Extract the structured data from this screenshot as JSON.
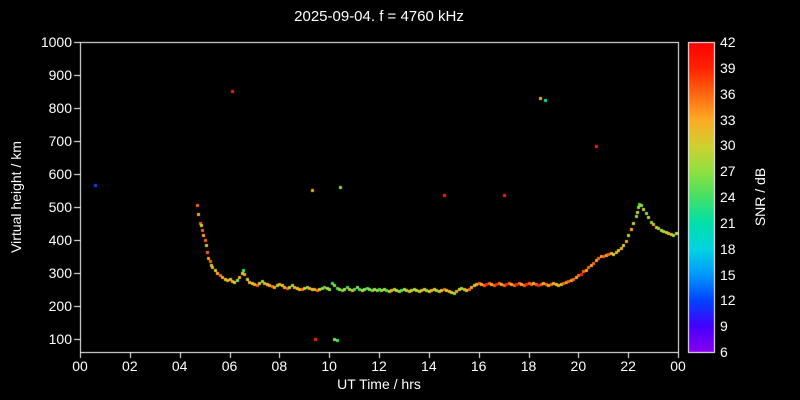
{
  "title": "2025-09-04. f = 4760 kHz",
  "axes": {
    "x_label": "UT Time / hrs",
    "y_label": "Virtual height / km",
    "x_tick_labels": [
      "00",
      "02",
      "04",
      "06",
      "08",
      "10",
      "12",
      "14",
      "16",
      "18",
      "20",
      "22",
      "00"
    ],
    "x_tick_values": [
      0,
      2,
      4,
      6,
      8,
      10,
      12,
      14,
      16,
      18,
      20,
      22,
      24
    ],
    "y_tick_labels": [
      "1000",
      "900",
      "800",
      "700",
      "600",
      "500",
      "400",
      "300",
      "200",
      "100"
    ],
    "y_tick_values": [
      1000,
      900,
      800,
      700,
      600,
      500,
      400,
      300,
      200,
      100
    ]
  },
  "colorbar": {
    "label": "SNR / dB",
    "tick_labels": [
      "42",
      "39",
      "36",
      "33",
      "30",
      "27",
      "24",
      "21",
      "18",
      "15",
      "12",
      "9",
      "6"
    ],
    "tick_values": [
      42,
      39,
      36,
      33,
      30,
      27,
      24,
      21,
      18,
      15,
      12,
      9,
      6
    ],
    "range": [
      6,
      42
    ],
    "colormap": [
      [
        6,
        "#8800ee"
      ],
      [
        9,
        "#4400ff"
      ],
      [
        12,
        "#0044ff"
      ],
      [
        15,
        "#0099ff"
      ],
      [
        18,
        "#00d5e0"
      ],
      [
        21,
        "#00e0aa"
      ],
      [
        24,
        "#44e066"
      ],
      [
        27,
        "#90e040"
      ],
      [
        30,
        "#d0d030"
      ],
      [
        33,
        "#ffaa22"
      ],
      [
        36,
        "#ff6611"
      ],
      [
        39,
        "#ff2200"
      ],
      [
        42,
        "#ff0000"
      ]
    ]
  },
  "chart_data": {
    "type": "scatter",
    "title": "2025-09-04. f = 4760 kHz",
    "xlabel": "UT Time / hrs",
    "ylabel": "Virtual height / km",
    "color_label": "SNR / dB",
    "xlim": [
      0,
      24
    ],
    "ylim": [
      60,
      1000
    ],
    "color_range": [
      6,
      42
    ],
    "grid": false,
    "background": "#000000",
    "points": [
      [
        4.7,
        505,
        36
      ],
      [
        4.75,
        478,
        33
      ],
      [
        4.8,
        452,
        36
      ],
      [
        4.85,
        446,
        30
      ],
      [
        4.9,
        430,
        36
      ],
      [
        4.95,
        415,
        33
      ],
      [
        5.0,
        400,
        36
      ],
      [
        5.05,
        383,
        30
      ],
      [
        5.1,
        362,
        36
      ],
      [
        5.15,
        345,
        33
      ],
      [
        5.2,
        335,
        36
      ],
      [
        5.25,
        325,
        30
      ],
      [
        5.3,
        318,
        33
      ],
      [
        5.4,
        310,
        30
      ],
      [
        5.5,
        300,
        33
      ],
      [
        5.6,
        292,
        36
      ],
      [
        5.7,
        287,
        33
      ],
      [
        5.8,
        282,
        30
      ],
      [
        5.9,
        278,
        33
      ],
      [
        6.0,
        280,
        30
      ],
      [
        6.1,
        276,
        33
      ],
      [
        6.2,
        272,
        30
      ],
      [
        6.3,
        278,
        27
      ],
      [
        6.4,
        286,
        33
      ],
      [
        6.5,
        300,
        30
      ],
      [
        6.55,
        310,
        24
      ],
      [
        6.6,
        296,
        33
      ],
      [
        6.7,
        281,
        30
      ],
      [
        6.8,
        273,
        33
      ],
      [
        6.9,
        268,
        30
      ],
      [
        7.0,
        265,
        33
      ],
      [
        7.1,
        262,
        36
      ],
      [
        7.2,
        268,
        30
      ],
      [
        7.3,
        275,
        27
      ],
      [
        7.4,
        270,
        33
      ],
      [
        7.5,
        265,
        30
      ],
      [
        7.6,
        262,
        33
      ],
      [
        7.7,
        260,
        36
      ],
      [
        7.8,
        258,
        33
      ],
      [
        7.9,
        262,
        27
      ],
      [
        8.0,
        265,
        33
      ],
      [
        8.1,
        262,
        30
      ],
      [
        8.2,
        258,
        33
      ],
      [
        8.3,
        255,
        36
      ],
      [
        8.4,
        258,
        30
      ],
      [
        8.5,
        262,
        27
      ],
      [
        8.6,
        258,
        33
      ],
      [
        8.7,
        255,
        30
      ],
      [
        8.8,
        252,
        33
      ],
      [
        8.9,
        250,
        36
      ],
      [
        9.0,
        255,
        30
      ],
      [
        9.1,
        258,
        27
      ],
      [
        9.2,
        255,
        33
      ],
      [
        9.3,
        252,
        30
      ],
      [
        9.4,
        250,
        33
      ],
      [
        9.5,
        248,
        36
      ],
      [
        9.6,
        252,
        30
      ],
      [
        9.7,
        255,
        27
      ],
      [
        9.8,
        258,
        24
      ],
      [
        9.9,
        255,
        30
      ],
      [
        10.0,
        252,
        27
      ],
      [
        10.1,
        268,
        24
      ],
      [
        10.2,
        262,
        27
      ],
      [
        10.3,
        255,
        24
      ],
      [
        10.4,
        250,
        27
      ],
      [
        10.5,
        248,
        24
      ],
      [
        10.6,
        252,
        30
      ],
      [
        10.7,
        258,
        24
      ],
      [
        10.8,
        252,
        27
      ],
      [
        10.9,
        248,
        33
      ],
      [
        11.0,
        252,
        24
      ],
      [
        11.1,
        256,
        27
      ],
      [
        11.2,
        250,
        24
      ],
      [
        11.3,
        248,
        30
      ],
      [
        11.4,
        252,
        27
      ],
      [
        11.5,
        255,
        24
      ],
      [
        11.6,
        250,
        27
      ],
      [
        11.7,
        248,
        24
      ],
      [
        11.8,
        252,
        30
      ],
      [
        11.9,
        248,
        27
      ],
      [
        12.0,
        250,
        24
      ],
      [
        12.1,
        248,
        27
      ],
      [
        12.2,
        252,
        30
      ],
      [
        12.3,
        248,
        24
      ],
      [
        12.4,
        245,
        27
      ],
      [
        12.5,
        248,
        33
      ],
      [
        12.6,
        252,
        27
      ],
      [
        12.7,
        248,
        30
      ],
      [
        12.8,
        245,
        27
      ],
      [
        12.9,
        248,
        24
      ],
      [
        13.0,
        250,
        30
      ],
      [
        13.1,
        248,
        27
      ],
      [
        13.2,
        245,
        33
      ],
      [
        13.3,
        248,
        30
      ],
      [
        13.4,
        252,
        27
      ],
      [
        13.5,
        248,
        30
      ],
      [
        13.6,
        245,
        27
      ],
      [
        13.7,
        248,
        33
      ],
      [
        13.8,
        250,
        30
      ],
      [
        13.9,
        248,
        27
      ],
      [
        14.0,
        245,
        30
      ],
      [
        14.1,
        248,
        33
      ],
      [
        14.2,
        250,
        30
      ],
      [
        14.3,
        248,
        27
      ],
      [
        14.4,
        245,
        33
      ],
      [
        14.5,
        248,
        30
      ],
      [
        14.6,
        250,
        36
      ],
      [
        14.7,
        248,
        30
      ],
      [
        14.8,
        245,
        33
      ],
      [
        14.9,
        242,
        30
      ],
      [
        15.0,
        240,
        27
      ],
      [
        15.1,
        245,
        33
      ],
      [
        15.2,
        250,
        30
      ],
      [
        15.3,
        255,
        27
      ],
      [
        15.4,
        252,
        33
      ],
      [
        15.5,
        248,
        30
      ],
      [
        15.6,
        252,
        36
      ],
      [
        15.7,
        258,
        33
      ],
      [
        15.8,
        262,
        30
      ],
      [
        15.9,
        265,
        33
      ],
      [
        16.0,
        268,
        36
      ],
      [
        16.1,
        265,
        33
      ],
      [
        16.2,
        262,
        36
      ],
      [
        16.3,
        265,
        39
      ],
      [
        16.4,
        268,
        36
      ],
      [
        16.5,
        265,
        33
      ],
      [
        16.6,
        262,
        36
      ],
      [
        16.7,
        265,
        39
      ],
      [
        16.8,
        268,
        36
      ],
      [
        16.9,
        265,
        33
      ],
      [
        17.0,
        263,
        36
      ],
      [
        17.1,
        265,
        39
      ],
      [
        17.2,
        268,
        36
      ],
      [
        17.3,
        265,
        33
      ],
      [
        17.4,
        262,
        36
      ],
      [
        17.5,
        265,
        39
      ],
      [
        17.6,
        268,
        36
      ],
      [
        17.7,
        265,
        33
      ],
      [
        17.8,
        262,
        36
      ],
      [
        17.9,
        265,
        39
      ],
      [
        18.0,
        268,
        36
      ],
      [
        18.1,
        266,
        36
      ],
      [
        18.2,
        268,
        33
      ],
      [
        18.3,
        265,
        36
      ],
      [
        18.4,
        262,
        39
      ],
      [
        18.5,
        265,
        36
      ],
      [
        18.6,
        268,
        33
      ],
      [
        18.7,
        265,
        36
      ],
      [
        18.8,
        262,
        33
      ],
      [
        18.9,
        265,
        36
      ],
      [
        19.0,
        268,
        33
      ],
      [
        19.1,
        265,
        30
      ],
      [
        19.2,
        262,
        33
      ],
      [
        19.3,
        266,
        30
      ],
      [
        19.4,
        270,
        36
      ],
      [
        19.5,
        272,
        33
      ],
      [
        19.6,
        275,
        36
      ],
      [
        19.7,
        278,
        33
      ],
      [
        19.8,
        282,
        36
      ],
      [
        19.9,
        288,
        33
      ],
      [
        20.0,
        292,
        36
      ],
      [
        20.1,
        298,
        39
      ],
      [
        20.2,
        305,
        36
      ],
      [
        20.3,
        310,
        33
      ],
      [
        20.4,
        318,
        36
      ],
      [
        20.5,
        325,
        33
      ],
      [
        20.6,
        330,
        36
      ],
      [
        20.7,
        338,
        33
      ],
      [
        20.8,
        345,
        36
      ],
      [
        20.9,
        350,
        33
      ],
      [
        21.0,
        352,
        36
      ],
      [
        21.1,
        355,
        33
      ],
      [
        21.2,
        358,
        36
      ],
      [
        21.3,
        360,
        33
      ],
      [
        21.4,
        358,
        30
      ],
      [
        21.5,
        362,
        33
      ],
      [
        21.6,
        368,
        30
      ],
      [
        21.7,
        375,
        33
      ],
      [
        21.8,
        385,
        30
      ],
      [
        21.9,
        398,
        33
      ],
      [
        22.0,
        415,
        30
      ],
      [
        22.1,
        432,
        33
      ],
      [
        22.2,
        452,
        30
      ],
      [
        22.3,
        472,
        27
      ],
      [
        22.35,
        486,
        30
      ],
      [
        22.4,
        500,
        27
      ],
      [
        22.45,
        510,
        24
      ],
      [
        22.5,
        506,
        27
      ],
      [
        22.6,
        495,
        30
      ],
      [
        22.7,
        481,
        27
      ],
      [
        22.8,
        468,
        30
      ],
      [
        22.9,
        455,
        27
      ],
      [
        23.0,
        448,
        33
      ],
      [
        23.1,
        440,
        30
      ],
      [
        23.2,
        435,
        27
      ],
      [
        23.3,
        430,
        30
      ],
      [
        23.4,
        428,
        27
      ],
      [
        23.5,
        425,
        30
      ],
      [
        23.6,
        420,
        33
      ],
      [
        23.7,
        418,
        30
      ],
      [
        23.8,
        414,
        27
      ],
      [
        23.9,
        420,
        30
      ],
      [
        0.6,
        565,
        12
      ],
      [
        6.1,
        850,
        39
      ],
      [
        9.3,
        552,
        33
      ],
      [
        10.45,
        560,
        27
      ],
      [
        14.6,
        535,
        39
      ],
      [
        17.0,
        535,
        39
      ],
      [
        18.45,
        830,
        33
      ],
      [
        18.65,
        825,
        21
      ],
      [
        20.7,
        685,
        39
      ],
      [
        9.45,
        98,
        39
      ],
      [
        10.2,
        100,
        27
      ],
      [
        10.32,
        97,
        24
      ]
    ]
  }
}
